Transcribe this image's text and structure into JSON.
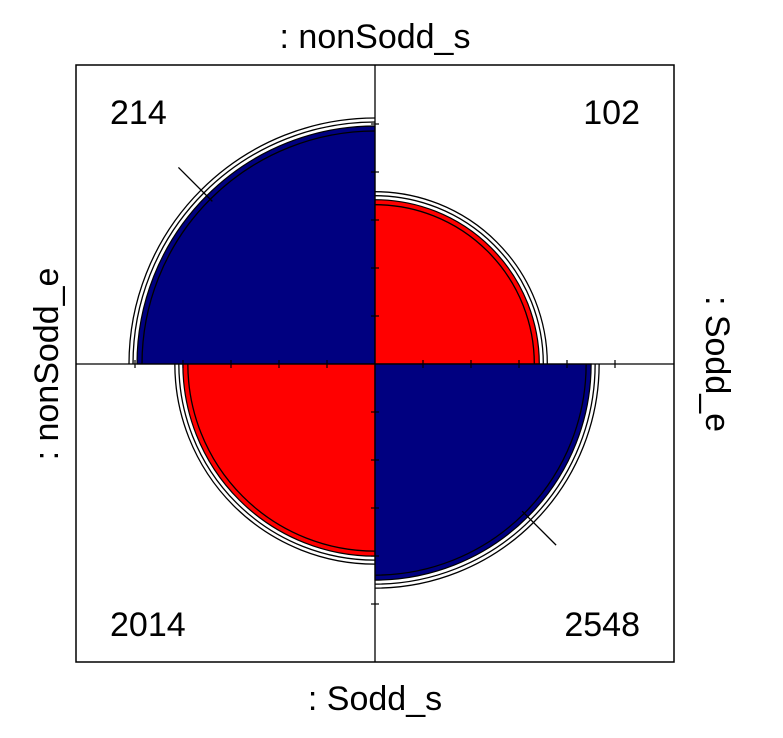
{
  "chart_data": {
    "type": "fourfold",
    "top_label": ": nonSodd_s",
    "bottom_label": ": Sodd_s",
    "left_label": ": nonSodd_e",
    "right_label": ": Sodd_e",
    "cells": [
      {
        "key": "top_left",
        "count": 214,
        "color": "#000080"
      },
      {
        "key": "top_right",
        "count": 102,
        "color": "#ff0000"
      },
      {
        "key": "bottom_left",
        "count": 2014,
        "color": "#ff0000"
      },
      {
        "key": "bottom_right",
        "count": 2548,
        "color": "#000080"
      }
    ],
    "confidence_rings": true,
    "grid": false
  }
}
